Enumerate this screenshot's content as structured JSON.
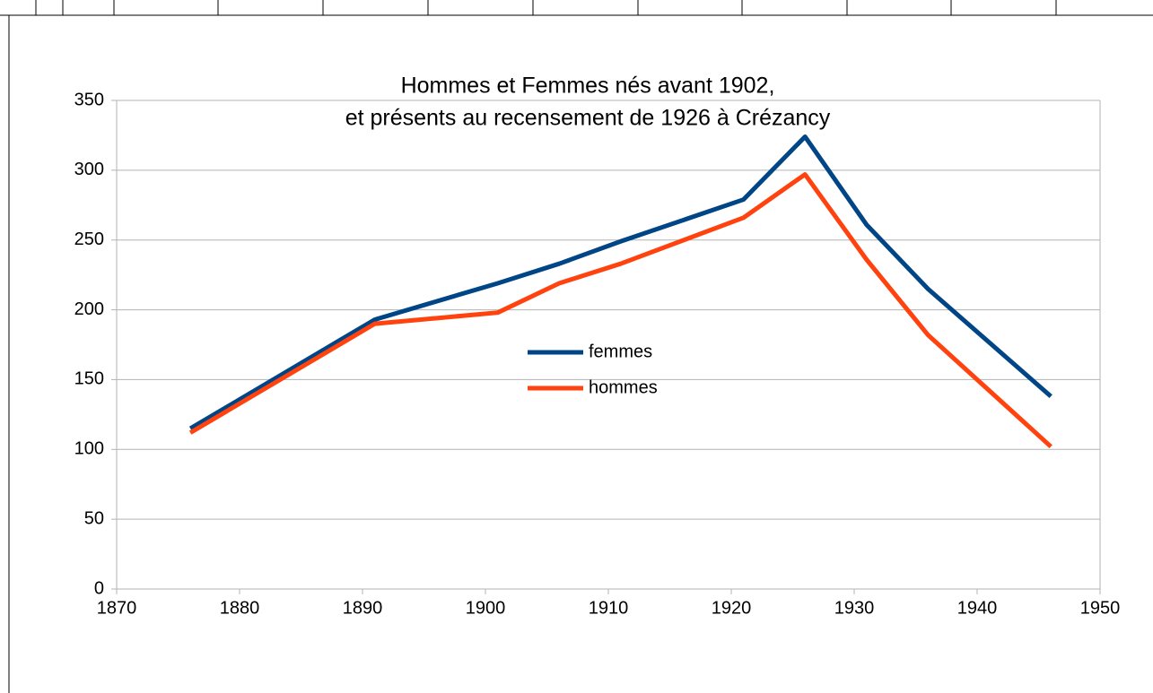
{
  "chart_data": {
    "type": "line",
    "title": "Hommes et Femmes nés avant 1902,",
    "subtitle": "et présents au recensement de 1926 à Crézancy",
    "x": [
      1876,
      1891,
      1901,
      1906,
      1911,
      1921,
      1926,
      1931,
      1936,
      1946
    ],
    "series": [
      {
        "name": "femmes",
        "color": "#004586",
        "values": [
          115,
          193,
          219,
          233,
          249,
          279,
          324,
          261,
          215,
          138
        ]
      },
      {
        "name": "hommes",
        "color": "#ff420e",
        "values": [
          112,
          190,
          198,
          219,
          233,
          266,
          297,
          236,
          182,
          102
        ]
      }
    ],
    "xlim": [
      1870,
      1950
    ],
    "xticks": [
      1870,
      1880,
      1890,
      1900,
      1910,
      1920,
      1930,
      1940,
      1950
    ],
    "ylim": [
      0,
      350
    ],
    "yticks": [
      0,
      50,
      100,
      150,
      200,
      250,
      300,
      350
    ],
    "grid": true,
    "legend_position": "center"
  }
}
